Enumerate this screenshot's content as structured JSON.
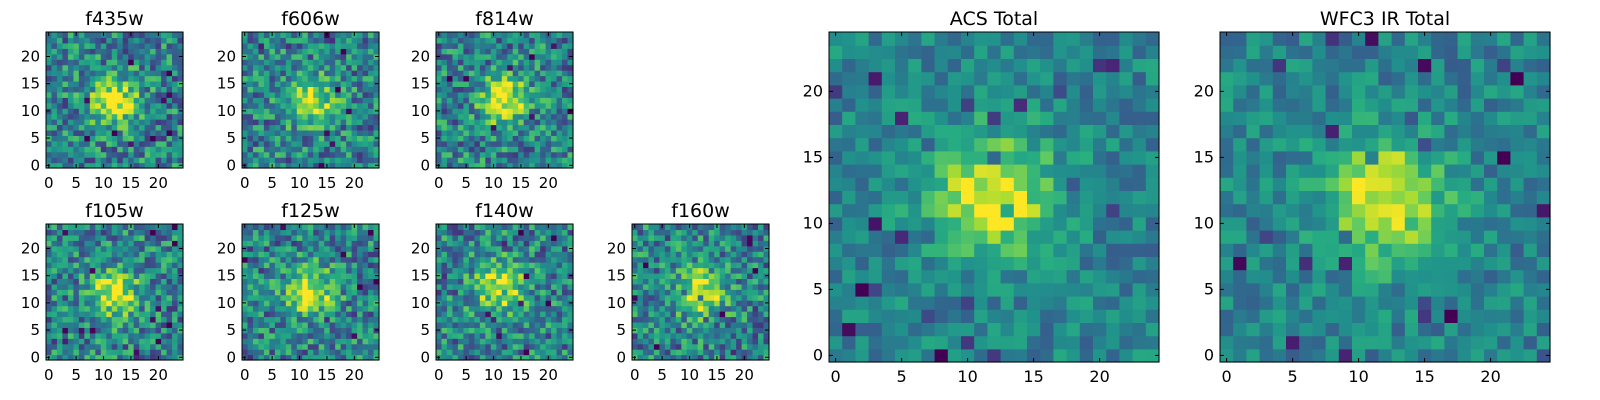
{
  "chart_data": [
    {
      "type": "heatmap",
      "title": "f435w",
      "x_ticks": [
        "0",
        "5",
        "10",
        "15",
        "20"
      ],
      "y_ticks": [
        "0",
        "5",
        "10",
        "15",
        "20"
      ],
      "xlim": [
        0,
        24
      ],
      "ylim": [
        0,
        24
      ],
      "grid_size": 25,
      "peak_x": 12,
      "peak_y": 12,
      "colormap": "viridis"
    },
    {
      "type": "heatmap",
      "title": "f606w",
      "x_ticks": [
        "0",
        "5",
        "10",
        "15",
        "20"
      ],
      "y_ticks": [
        "0",
        "5",
        "10",
        "15",
        "20"
      ],
      "xlim": [
        0,
        24
      ],
      "ylim": [
        0,
        24
      ],
      "grid_size": 25,
      "peak_x": 12,
      "peak_y": 12,
      "colormap": "viridis"
    },
    {
      "type": "heatmap",
      "title": "f814w",
      "x_ticks": [
        "0",
        "5",
        "10",
        "15",
        "20"
      ],
      "y_ticks": [
        "0",
        "5",
        "10",
        "15",
        "20"
      ],
      "xlim": [
        0,
        24
      ],
      "ylim": [
        0,
        24
      ],
      "grid_size": 25,
      "peak_x": 12,
      "peak_y": 12,
      "colormap": "viridis"
    },
    {
      "type": "heatmap",
      "title": "f105w",
      "x_ticks": [
        "0",
        "5",
        "10",
        "15",
        "20"
      ],
      "y_ticks": [
        "0",
        "5",
        "10",
        "15",
        "20"
      ],
      "xlim": [
        0,
        24
      ],
      "ylim": [
        0,
        24
      ],
      "grid_size": 25,
      "peak_x": 12,
      "peak_y": 12,
      "colormap": "viridis"
    },
    {
      "type": "heatmap",
      "title": "f125w",
      "x_ticks": [
        "0",
        "5",
        "10",
        "15",
        "20"
      ],
      "y_ticks": [
        "0",
        "5",
        "10",
        "15",
        "20"
      ],
      "xlim": [
        0,
        24
      ],
      "ylim": [
        0,
        24
      ],
      "grid_size": 25,
      "peak_x": 12,
      "peak_y": 12,
      "colormap": "viridis"
    },
    {
      "type": "heatmap",
      "title": "f140w",
      "x_ticks": [
        "0",
        "5",
        "10",
        "15",
        "20"
      ],
      "y_ticks": [
        "0",
        "5",
        "10",
        "15",
        "20"
      ],
      "xlim": [
        0,
        24
      ],
      "ylim": [
        0,
        24
      ],
      "grid_size": 25,
      "peak_x": 11,
      "peak_y": 13,
      "colormap": "viridis"
    },
    {
      "type": "heatmap",
      "title": "f160w",
      "x_ticks": [
        "0",
        "5",
        "10",
        "15",
        "20"
      ],
      "y_ticks": [
        "0",
        "5",
        "10",
        "15",
        "20"
      ],
      "xlim": [
        0,
        24
      ],
      "ylim": [
        0,
        24
      ],
      "grid_size": 25,
      "peak_x": 12,
      "peak_y": 12,
      "colormap": "viridis"
    },
    {
      "type": "heatmap",
      "title": "ACS Total",
      "x_ticks": [
        "0",
        "5",
        "10",
        "15",
        "20"
      ],
      "y_ticks": [
        "0",
        "5",
        "10",
        "15",
        "20"
      ],
      "xlim": [
        0,
        24
      ],
      "ylim": [
        0,
        24
      ],
      "grid_size": 25,
      "peak_x": 12,
      "peak_y": 12,
      "colormap": "viridis"
    },
    {
      "type": "heatmap",
      "title": "WFC3 IR Total",
      "x_ticks": [
        "0",
        "5",
        "10",
        "15",
        "20"
      ],
      "y_ticks": [
        "0",
        "5",
        "10",
        "15",
        "20"
      ],
      "xlim": [
        0,
        24
      ],
      "ylim": [
        0,
        24
      ],
      "grid_size": 25,
      "peak_x": 12,
      "peak_y": 12,
      "colormap": "viridis"
    }
  ]
}
